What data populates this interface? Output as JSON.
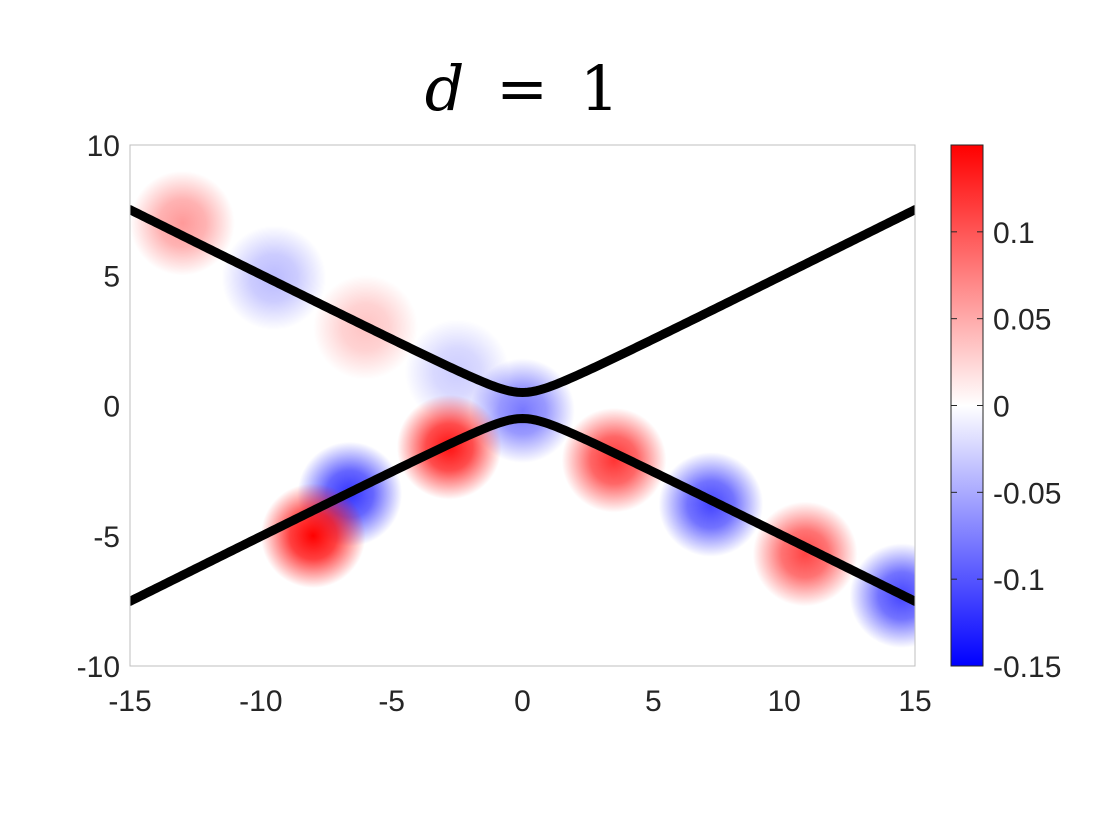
{
  "chart_data": {
    "type": "heatmap",
    "title": "d = 1",
    "title_parts": {
      "var": "d",
      "op": "=",
      "num": "1"
    },
    "xlabel": "",
    "ylabel": "",
    "xlim": [
      -15,
      15
    ],
    "ylim": [
      -10,
      10
    ],
    "x_ticks": [
      -15,
      -10,
      -5,
      0,
      5,
      10,
      15
    ],
    "x_tick_labels": [
      "-15",
      "-10",
      "-5",
      "0",
      "5",
      "10",
      "15"
    ],
    "y_ticks": [
      10,
      5,
      0,
      -5,
      -10
    ],
    "y_tick_labels": [
      "10",
      "5",
      "0",
      "-5",
      "-10"
    ],
    "colorbar": {
      "min": -0.15,
      "max": 0.15,
      "ticks": [
        0.1,
        0.05,
        0,
        -0.05,
        -0.1,
        -0.15
      ],
      "tick_labels": [
        "0.1",
        "0.05",
        "0",
        "-0.05",
        "-0.1",
        "-0.15"
      ],
      "colormap": [
        "#0000ff",
        "#ffffff",
        "#ff0000"
      ]
    },
    "curves": {
      "description_equation": "y = ±sqrt((x/2)^2 + 0.25)",
      "slope": 0.5,
      "vertex_offset": 0.5,
      "color": "#000000"
    },
    "blobs": [
      {
        "x": -13.0,
        "y": 7.0,
        "value": 0.06
      },
      {
        "x": -9.5,
        "y": 4.9,
        "value": -0.04
      },
      {
        "x": -6.0,
        "y": 3.0,
        "value": 0.035
      },
      {
        "x": -2.5,
        "y": 1.3,
        "value": -0.03
      },
      {
        "x": 0.0,
        "y": -0.2,
        "value": -0.08
      },
      {
        "x": -2.8,
        "y": -1.6,
        "value": 0.14
      },
      {
        "x": -6.6,
        "y": -3.4,
        "value": -0.12
      },
      {
        "x": -8.0,
        "y": -5.0,
        "value": 0.15
      },
      {
        "x": 3.5,
        "y": -2.1,
        "value": 0.12
      },
      {
        "x": 7.2,
        "y": -3.8,
        "value": -0.11
      },
      {
        "x": 10.8,
        "y": -5.7,
        "value": 0.11
      },
      {
        "x": 14.5,
        "y": -7.3,
        "value": -0.11
      }
    ]
  }
}
